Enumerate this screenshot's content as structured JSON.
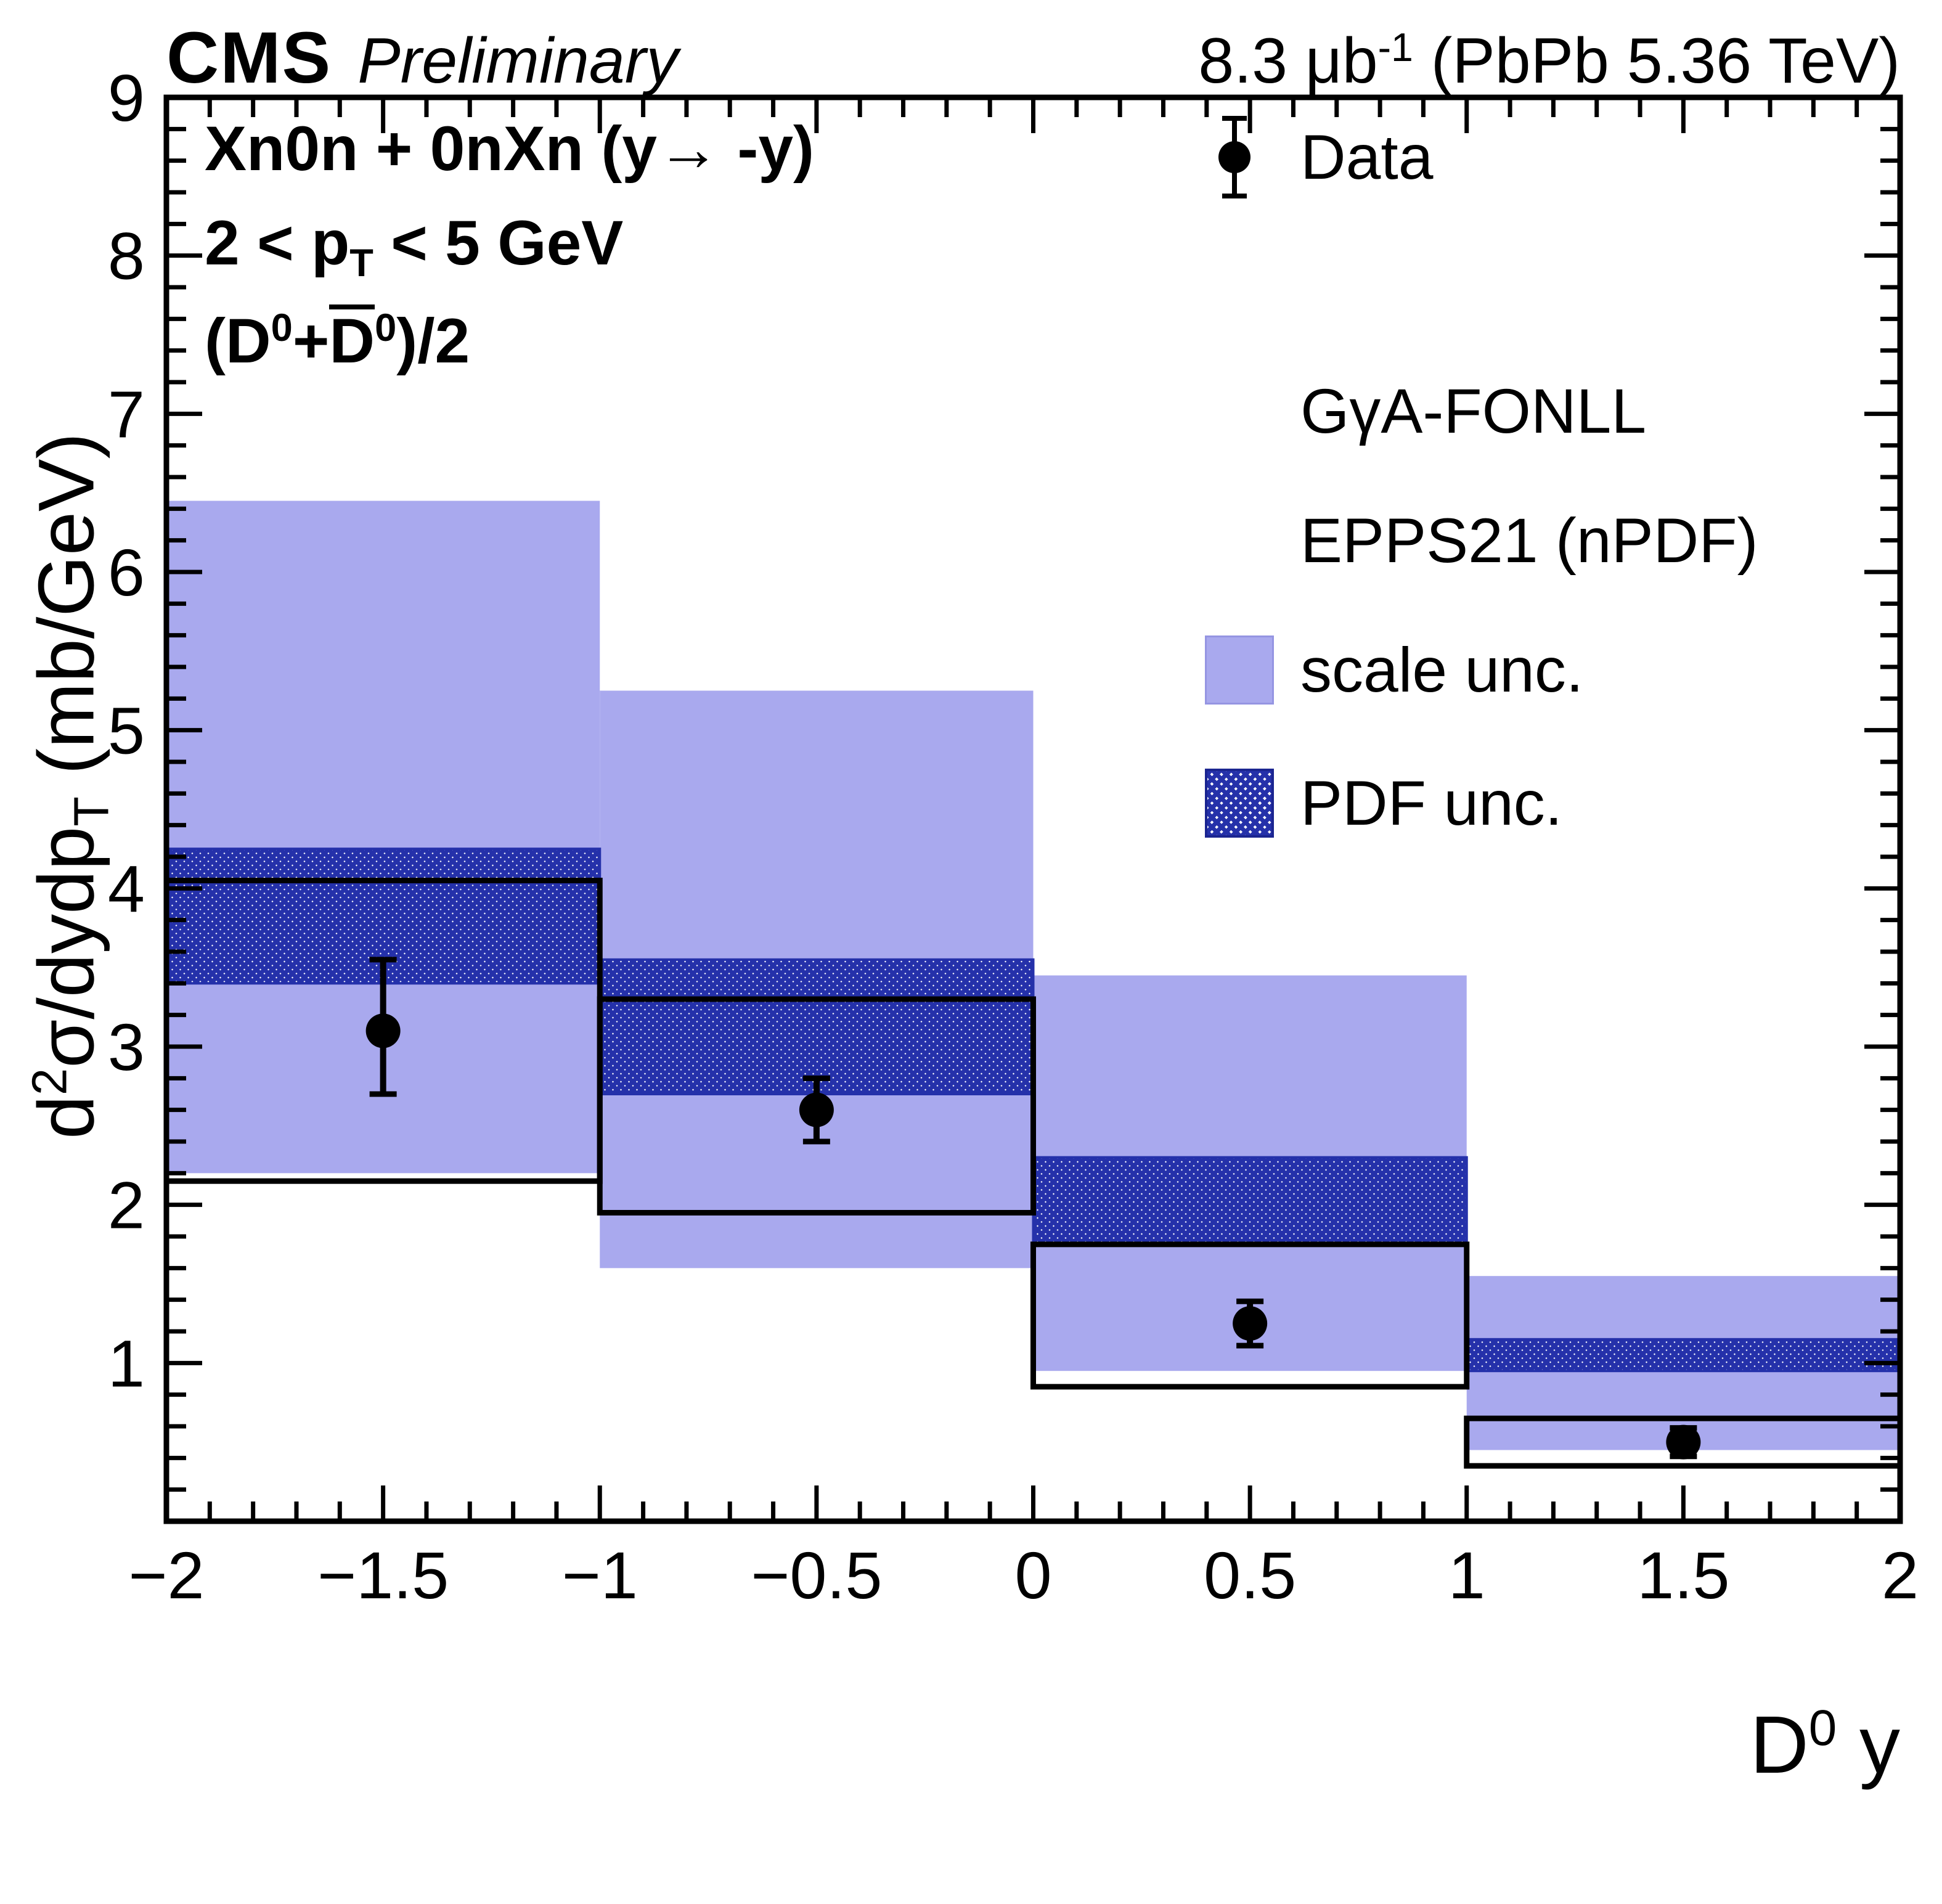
{
  "header": {
    "cms": "CMS",
    "preliminary": "Preliminary",
    "lumi_main": "8.3 μb",
    "lumi_sup": "-1",
    "lumi_rest": " (PbPb 5.36 TeV)"
  },
  "panel": {
    "line1": "Xn0n + 0nXn (y→ -y)",
    "line2_a": "2 < p",
    "line2_sub": "T",
    "line2_b": " < 5 GeV",
    "line3_a": "(D",
    "line3_sup1": "0",
    "line3_b": "+",
    "line3_dbar": "D",
    "line3_sup2": "0",
    "line3_c": ")/2"
  },
  "legend": {
    "data": "Data",
    "model_line1": "GγA-FONLL",
    "model_line2": "EPPS21 (nPDF)",
    "scale": "scale unc.",
    "pdf": "PDF unc."
  },
  "axes": {
    "y_title_a": "d",
    "y_title_sup": "2",
    "y_title_b": "σ/dydp",
    "y_title_sub": "T",
    "y_title_c": " (mb/GeV)",
    "x_title_a": "D",
    "x_title_sup": "0",
    "x_title_b": " y"
  },
  "chart_data": {
    "type": "scatter",
    "title": "CMS Preliminary 8.3 μb-1 (PbPb 5.36 TeV)",
    "xlabel": "D0 y",
    "ylabel": "d2σ/dydpT (mb/GeV)",
    "x_axis": {
      "label": "D0 y",
      "range": [
        -2,
        2
      ],
      "ticks": [
        -2,
        -1.5,
        -1,
        -0.5,
        0,
        0.5,
        1,
        1.5,
        2
      ],
      "tick_labels": [
        "−2",
        "−1.5",
        "−1",
        "−0.5",
        "0",
        "0.5",
        "1",
        "1.5",
        "2"
      ]
    },
    "y_axis": {
      "label": "d2σ/dydpT (mb/GeV)",
      "range": [
        0,
        9
      ],
      "ticks": [
        1,
        2,
        3,
        4,
        5,
        6,
        7,
        8,
        9
      ],
      "tick_labels": [
        "1",
        "2",
        "3",
        "4",
        "5",
        "6",
        "7",
        "8",
        "9"
      ]
    },
    "bins": [
      {
        "x_range": [
          -2,
          -1
        ],
        "central": 4.05,
        "scale_unc": [
          2.2,
          6.45
        ],
        "pdf_unc": [
          3.4,
          4.25
        ],
        "outline_bottom": 2.15
      },
      {
        "x_range": [
          -1,
          0
        ],
        "central": 3.3,
        "scale_unc": [
          1.6,
          5.25
        ],
        "pdf_unc": [
          2.7,
          3.55
        ],
        "outline_bottom": 1.95
      },
      {
        "x_range": [
          0,
          1
        ],
        "central": 1.75,
        "scale_unc": [
          0.95,
          3.45
        ],
        "pdf_unc": [
          1.75,
          2.3
        ],
        "outline_bottom": 0.85
      },
      {
        "x_range": [
          1,
          2
        ],
        "central": 0.65,
        "scale_unc": [
          0.45,
          1.55
        ],
        "pdf_unc": [
          0.95,
          1.15
        ],
        "outline_bottom": 0.35
      }
    ],
    "data_points": [
      {
        "x": -1.5,
        "y": 3.1,
        "yerr_up": 0.45,
        "yerr_down": 0.4
      },
      {
        "x": -0.5,
        "y": 2.6,
        "yerr_up": 0.2,
        "yerr_down": 0.2
      },
      {
        "x": 0.5,
        "y": 1.25,
        "yerr_up": 0.14,
        "yerr_down": 0.14
      },
      {
        "x": 1.5,
        "y": 0.5,
        "yerr_up": 0.09,
        "yerr_down": 0.09
      }
    ],
    "colors": {
      "scale_band": "#a9a9ee",
      "pdf_band": "#2531aa",
      "marker": "#000000",
      "frame": "#000000"
    },
    "legend_position": "top-right",
    "grid": false
  }
}
